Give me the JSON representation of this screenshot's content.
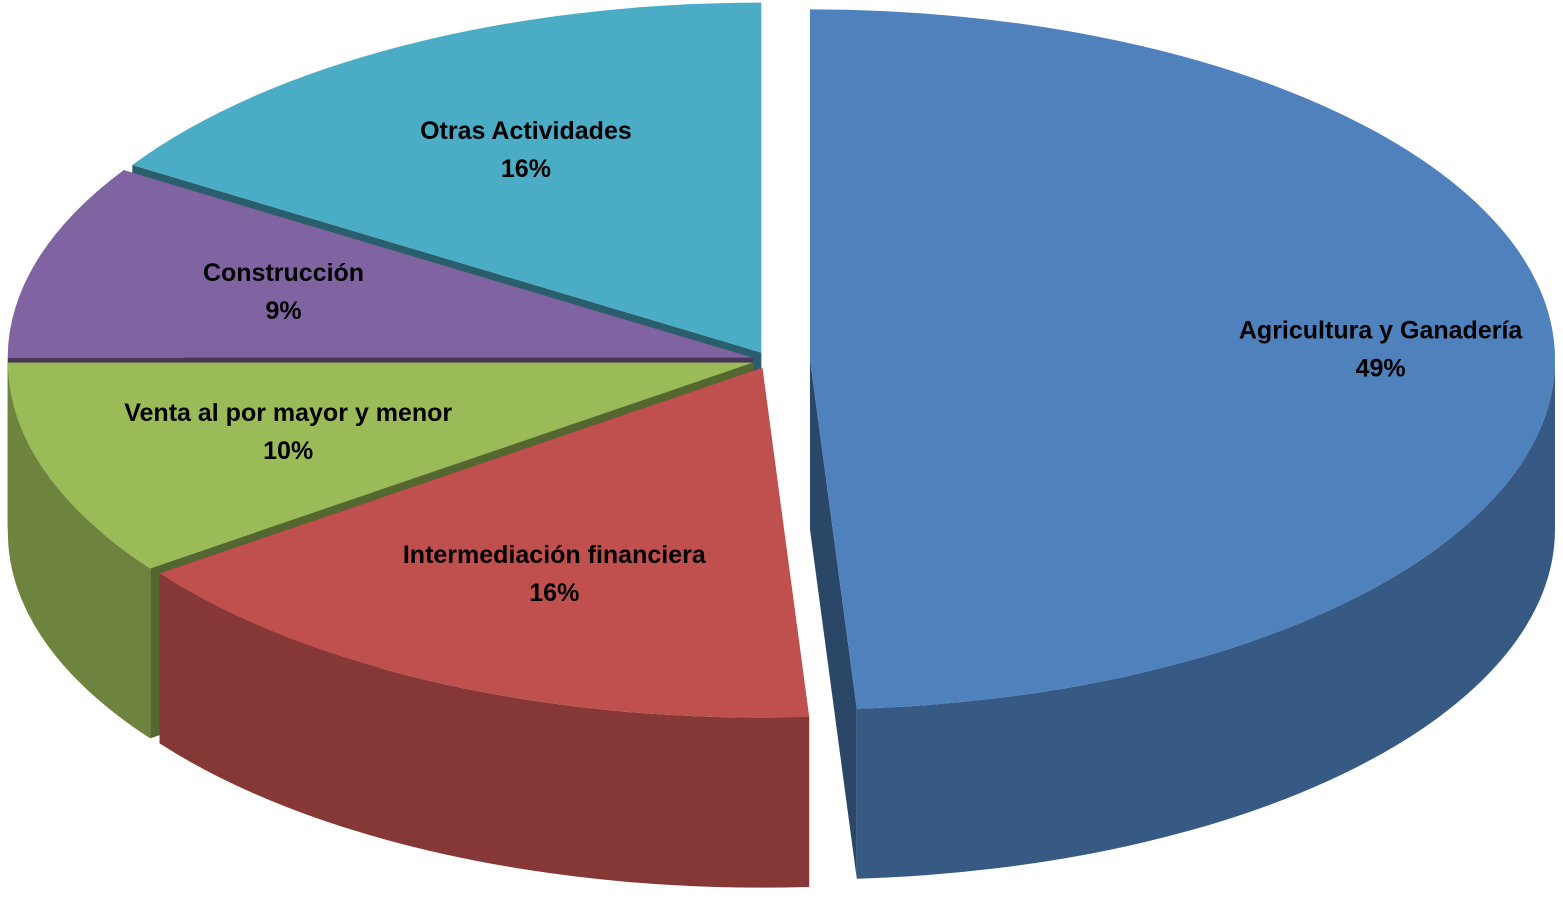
{
  "chart_data": {
    "type": "pie",
    "categories": [
      "Agricultura y Ganadería",
      "Intermediación financiera",
      "Venta al por mayor y menor",
      "Construcción",
      "Otras Actividades"
    ],
    "values": [
      49,
      16,
      10,
      9,
      16
    ],
    "value_labels": [
      "49%",
      "16%",
      "10%",
      "9%",
      "16%"
    ],
    "colors": [
      "#4f81bd",
      "#c0504d",
      "#9bbb59",
      "#8064a2",
      "#4bacc6"
    ]
  }
}
